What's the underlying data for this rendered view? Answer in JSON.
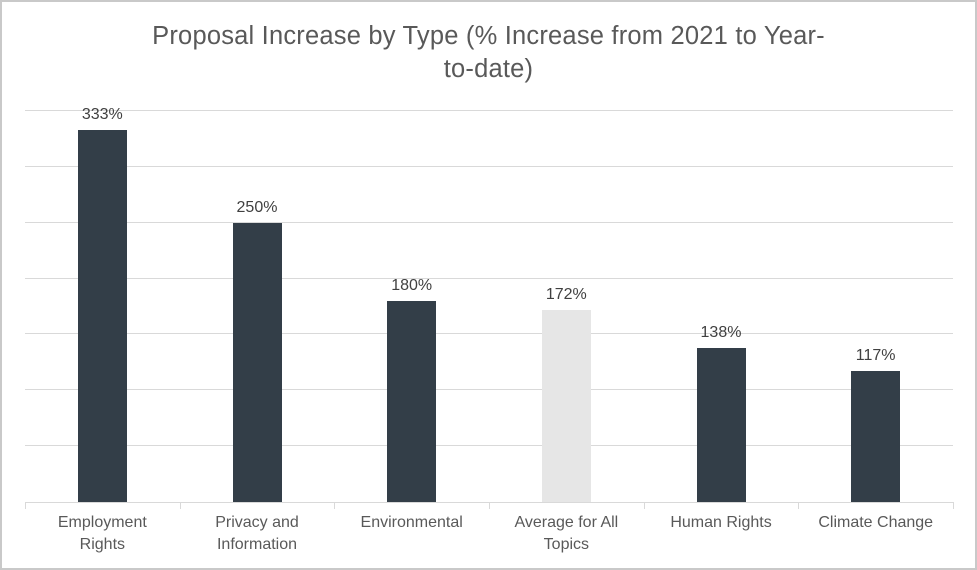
{
  "title_lines": [
    "Proposal Increase by Type (% Increase from 2021 to Year-",
    "to-date)"
  ],
  "chart_data": {
    "type": "bar",
    "title": "Proposal Increase by Type (% Increase from 2021 to Year-to-date)",
    "categories": [
      "Employment Rights",
      "Privacy and Information",
      "Environmental",
      "Average for All Topics",
      "Human Rights",
      "Climate Change"
    ],
    "category_display_lines": [
      "Employment\nRights",
      "Privacy and\nInformation",
      "Environmental",
      "Average for All\nTopics",
      "Human Rights",
      "Climate Change"
    ],
    "values": [
      333,
      250,
      180,
      172,
      138,
      117
    ],
    "data_labels": [
      "333%",
      "250%",
      "180%",
      "172%",
      "138%",
      "117%"
    ],
    "ylim": [
      0,
      350
    ],
    "grid_step": 50,
    "grid_on": true,
    "legend": "none",
    "xlabel": "",
    "ylabel": "",
    "highlight_index": 3
  },
  "colors": {
    "bar": "#333e48",
    "bar_highlight": "#e6e6e6",
    "gridline": "#d9d9d9",
    "axis": "#d9d9d9",
    "title_text": "#595959",
    "data_label_text": "#404040",
    "category_text": "#595959",
    "frame_border": "#c9c9c9",
    "background": "#ffffff"
  }
}
